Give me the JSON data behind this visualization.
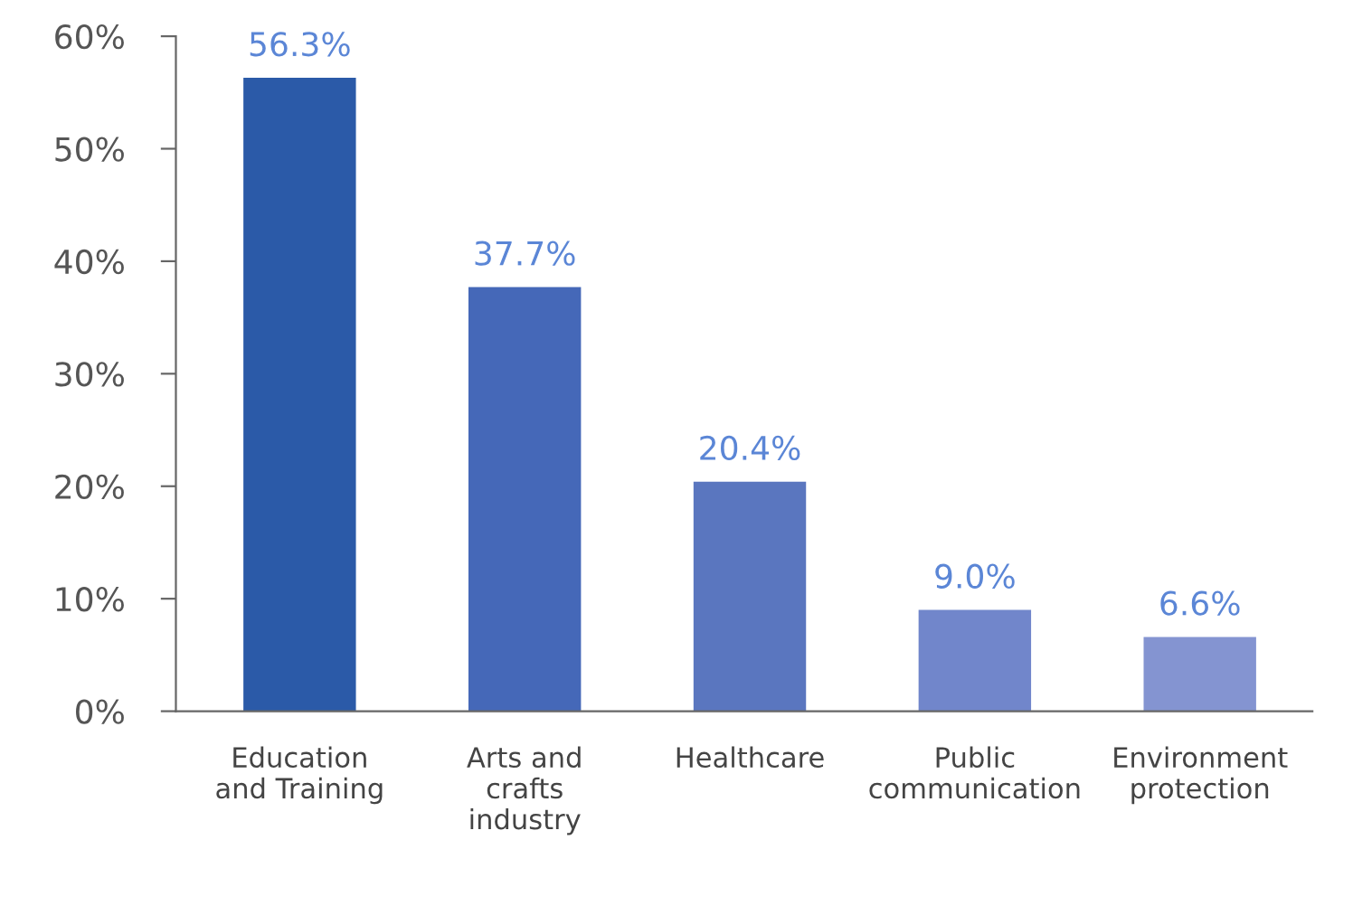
{
  "chart_data": {
    "type": "bar",
    "categories": [
      "Education\nand Training",
      "Arts and\ncrafts\nindustry",
      "Healthcare",
      "Public\ncommunication",
      "Environment\nprotection"
    ],
    "values": [
      56.3,
      37.7,
      20.4,
      9.0,
      6.6
    ],
    "value_labels": [
      "56.3%",
      "37.7%",
      "20.4%",
      "9.0%",
      "6.6%"
    ],
    "colors": [
      "#2b5aa8",
      "#4568b8",
      "#5a76bf",
      "#7186cb",
      "#8494d1"
    ],
    "ylim": [
      0,
      60
    ],
    "yticks": [
      {
        "value": 0,
        "label": "0%"
      },
      {
        "value": 10,
        "label": "10%"
      },
      {
        "value": 20,
        "label": "20%"
      },
      {
        "value": 30,
        "label": "30%"
      },
      {
        "value": 40,
        "label": "40%"
      },
      {
        "value": 50,
        "label": "50%"
      },
      {
        "value": 60,
        "label": "60%"
      }
    ],
    "grid": false,
    "legend": false
  }
}
